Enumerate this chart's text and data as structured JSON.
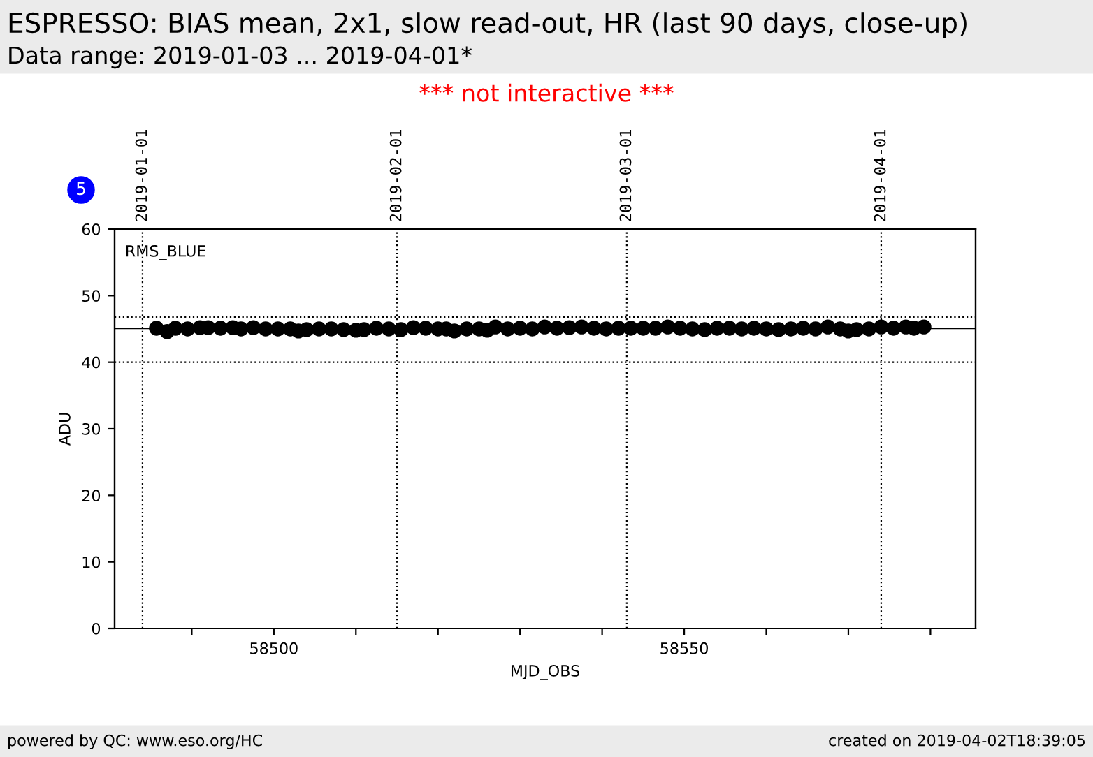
{
  "chart_data": {
    "type": "scatter",
    "title": "ESPRESSO: BIAS mean, 2x1, slow read-out, HR (last 90 days, close-up)",
    "subtitle": "Data range: 2019-01-03 ... 2019-04-01*",
    "xlabel": "MJD_OBS",
    "ylabel": "ADU",
    "x": [
      58485.7,
      58487,
      58488,
      58489.5,
      58491,
      58492,
      58493.5,
      58495,
      58496,
      58497.5,
      58499,
      58500.5,
      58502,
      58503,
      58504,
      58505.5,
      58507,
      58508.5,
      58510,
      58511,
      58512.5,
      58514,
      58515.5,
      58517,
      58518.5,
      58520,
      58521,
      58522,
      58523.5,
      58525,
      58526,
      58527,
      58528.5,
      58530,
      58531.5,
      58533,
      58534.5,
      58536,
      58537.5,
      58539,
      58540.5,
      58542,
      58543.5,
      58545,
      58546.5,
      58548,
      58549.5,
      58551,
      58552.5,
      58554,
      58555.5,
      58557,
      58558.5,
      58560,
      58561.5,
      58563,
      58564.5,
      58566,
      58567.5,
      58569,
      58570,
      58571,
      58572.5,
      58574,
      58575.5,
      58577,
      58578,
      58579.2
    ],
    "series": [
      {
        "color": "#000000",
        "values": [
          45.1,
          44.6,
          45.1,
          45.0,
          45.2,
          45.2,
          45.1,
          45.2,
          45.0,
          45.2,
          45.0,
          45.0,
          45.0,
          44.7,
          44.9,
          45.0,
          45.0,
          44.9,
          44.8,
          44.9,
          45.1,
          45.0,
          44.9,
          45.2,
          45.1,
          45.0,
          45.0,
          44.7,
          45.0,
          45.0,
          44.8,
          45.3,
          45.0,
          45.1,
          45.0,
          45.3,
          45.1,
          45.2,
          45.3,
          45.1,
          45.0,
          45.1,
          45.1,
          45.1,
          45.1,
          45.3,
          45.1,
          45.0,
          44.9,
          45.1,
          45.1,
          45.0,
          45.1,
          45.0,
          44.9,
          45.0,
          45.1,
          45.0,
          45.3,
          45.0,
          44.7,
          44.9,
          45.0,
          45.3,
          45.1,
          45.3,
          45.1,
          45.3
        ]
      }
    ],
    "xlim": [
      58480.6,
      58585.5
    ],
    "xticks": [
      {
        "value": 58490,
        "label": null
      },
      58500,
      {
        "value": 58510,
        "label": null
      },
      {
        "value": 58520,
        "label": null
      },
      {
        "value": 58530,
        "label": null
      },
      {
        "value": 58540,
        "label": null
      },
      58550,
      {
        "value": 58560,
        "label": null
      },
      {
        "value": 58570,
        "label": null
      },
      {
        "value": 58580,
        "label": null
      }
    ],
    "x2lim": [
      "2018-12-28T14:24",
      "2019-04-12T12:00"
    ],
    "x2ticks": [
      "2019-01-01",
      "2019-02-01",
      "2019-03-01",
      "2019-04-01"
    ],
    "ylim": [
      0,
      60
    ],
    "yticks": [
      0,
      10,
      20,
      30,
      40,
      50,
      60
    ],
    "ref_lines": [
      {
        "axis": "y",
        "value": 45.1,
        "line_style": "solid",
        "color": "#000000"
      },
      {
        "axis": "y",
        "value": 46.8,
        "line_style": "dotted",
        "color": "#000000"
      },
      {
        "axis": "y",
        "value": 40,
        "line_style": "dotted",
        "color": "#000000"
      }
    ],
    "grid": "x",
    "marker": "circle",
    "legend": false,
    "annotations": [
      "*** not interactive ***",
      "RMS_BLUE",
      "5",
      "powered by QC: www.eso.org/HC",
      "created on 2019-04-02T18:39:05"
    ]
  }
}
